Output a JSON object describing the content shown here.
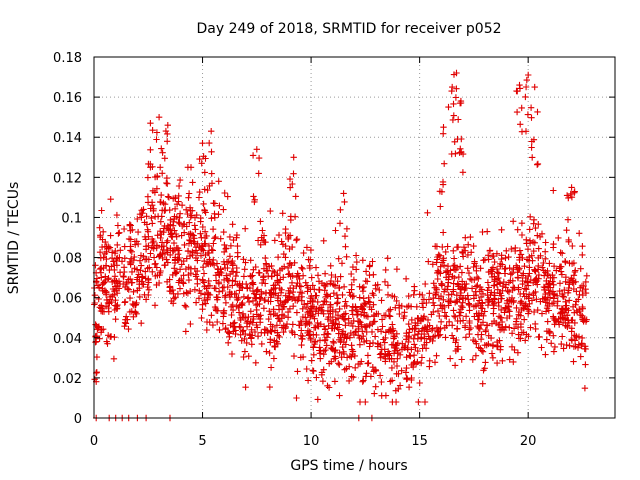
{
  "chart_data": {
    "type": "scatter",
    "title": "Day 249 of 2018, SRMTID for receiver p052",
    "xlabel": "GPS time / hours",
    "ylabel": "SRMTID / TECUs",
    "xlim": [
      0,
      24
    ],
    "ylim": [
      0,
      0.18
    ],
    "xticks": [
      0,
      5,
      10,
      15,
      20
    ],
    "xtick_labels": [
      "0",
      "5",
      "10",
      "15",
      "20"
    ],
    "yticks": [
      0,
      0.02,
      0.04,
      0.06,
      0.08,
      0.1,
      0.12,
      0.14,
      0.16,
      0.18
    ],
    "ytick_labels": [
      "0",
      "0.02",
      "0.04",
      "0.06",
      "0.08",
      "0.1",
      "0.12",
      "0.14",
      "0.16",
      "0.18"
    ],
    "grid": true,
    "marker": "+",
    "series": [
      {
        "name": "SRMTID",
        "color": "#e00000",
        "x_range_hours": [
          0,
          22.7
        ],
        "profile": [
          {
            "x": 0.2,
            "y": 0.065
          },
          {
            "x": 1.0,
            "y": 0.068
          },
          {
            "x": 2.0,
            "y": 0.075
          },
          {
            "x": 3.0,
            "y": 0.09
          },
          {
            "x": 4.0,
            "y": 0.085
          },
          {
            "x": 5.0,
            "y": 0.078
          },
          {
            "x": 6.0,
            "y": 0.07
          },
          {
            "x": 7.0,
            "y": 0.052
          },
          {
            "x": 8.0,
            "y": 0.058
          },
          {
            "x": 9.0,
            "y": 0.062
          },
          {
            "x": 10.0,
            "y": 0.048
          },
          {
            "x": 11.0,
            "y": 0.045
          },
          {
            "x": 12.0,
            "y": 0.048
          },
          {
            "x": 13.0,
            "y": 0.042
          },
          {
            "x": 14.0,
            "y": 0.036
          },
          {
            "x": 15.0,
            "y": 0.045
          },
          {
            "x": 16.0,
            "y": 0.06
          },
          {
            "x": 17.0,
            "y": 0.062
          },
          {
            "x": 18.0,
            "y": 0.055
          },
          {
            "x": 19.0,
            "y": 0.058
          },
          {
            "x": 20.0,
            "y": 0.068
          },
          {
            "x": 21.0,
            "y": 0.06
          },
          {
            "x": 22.0,
            "y": 0.055
          },
          {
            "x": 22.7,
            "y": 0.05
          }
        ],
        "peaks": [
          {
            "x": 2.6,
            "y": 0.147
          },
          {
            "x": 3.0,
            "y": 0.15
          },
          {
            "x": 3.4,
            "y": 0.146
          },
          {
            "x": 5.0,
            "y": 0.137
          },
          {
            "x": 5.4,
            "y": 0.143
          },
          {
            "x": 7.5,
            "y": 0.134
          },
          {
            "x": 9.2,
            "y": 0.13
          },
          {
            "x": 11.5,
            "y": 0.112
          },
          {
            "x": 16.1,
            "y": 0.145
          },
          {
            "x": 16.5,
            "y": 0.165
          },
          {
            "x": 16.7,
            "y": 0.172
          },
          {
            "x": 16.9,
            "y": 0.158
          },
          {
            "x": 19.6,
            "y": 0.166
          },
          {
            "x": 20.0,
            "y": 0.171
          },
          {
            "x": 20.3,
            "y": 0.165
          },
          {
            "x": 22.0,
            "y": 0.115
          }
        ],
        "zero_values_x": [
          0.1,
          0.7,
          1.0,
          1.3,
          1.6,
          2.0,
          2.4,
          3.5,
          12.2,
          12.8
        ]
      }
    ]
  }
}
